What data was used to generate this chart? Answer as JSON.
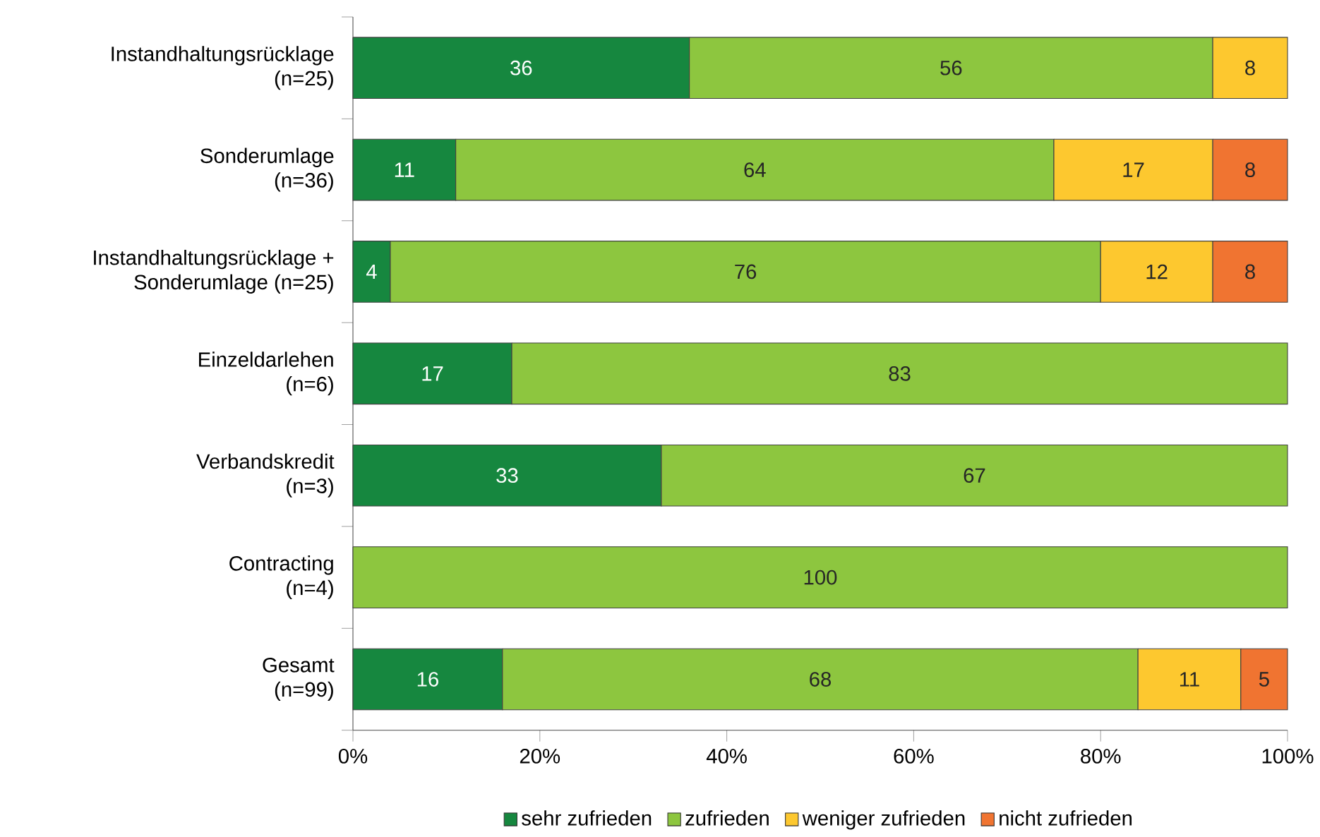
{
  "chart_data": {
    "type": "bar",
    "orientation": "horizontal",
    "stacked": true,
    "data_labels": true,
    "legend": "bottom",
    "grid": false,
    "categories": [
      "Instandhaltungsrücklage\n(n=25)",
      "Sonderumlage\n(n=36)",
      "Instandhaltungsrücklage +\nSonderumlage (n=25)",
      "Einzeldarlehen\n(n=6)",
      "Verbandskredit\n(n=3)",
      "Contracting\n(n=4)",
      "Gesamt\n(n=99)"
    ],
    "series": [
      {
        "name": "sehr zufrieden",
        "color": "#16873f",
        "values": [
          36,
          11,
          4,
          17,
          33,
          null,
          16
        ]
      },
      {
        "name": "zufrieden",
        "color": "#8dc63f",
        "values": [
          56,
          64,
          76,
          83,
          67,
          100,
          68
        ]
      },
      {
        "name": "weniger zufrieden",
        "color": "#fdc82f",
        "values": [
          8,
          17,
          12,
          null,
          null,
          null,
          11
        ]
      },
      {
        "name": "nicht zufrieden",
        "color": "#f07431",
        "values": [
          null,
          8,
          8,
          null,
          null,
          null,
          5
        ]
      }
    ],
    "xlim": [
      0,
      100
    ],
    "xticks": [
      {
        "value": 0,
        "label": "0%"
      },
      {
        "value": 20,
        "label": "20%"
      },
      {
        "value": 40,
        "label": "40%"
      },
      {
        "value": 60,
        "label": "60%"
      },
      {
        "value": 80,
        "label": "80%"
      },
      {
        "value": 100,
        "label": "100%"
      }
    ]
  }
}
